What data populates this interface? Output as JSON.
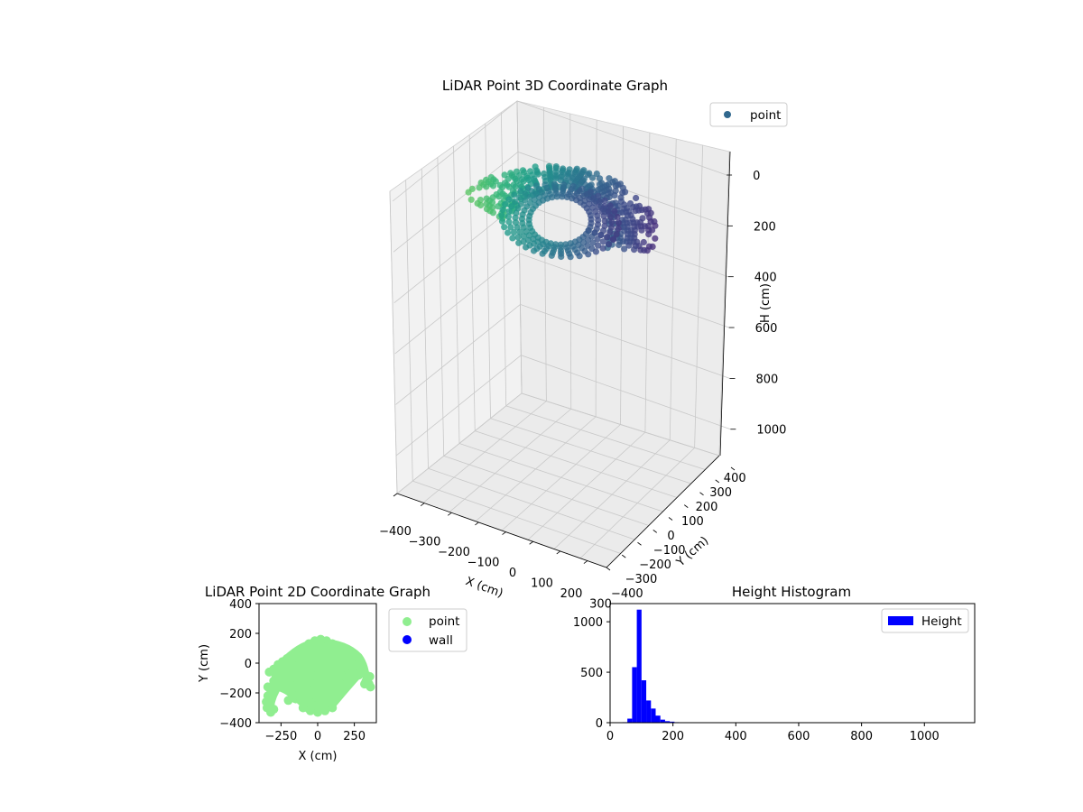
{
  "figure": {
    "background": "#ffffff"
  },
  "chart_data": [
    {
      "type": "scatter",
      "projection": "3d",
      "title": "LiDAR Point 3D Coordinate Graph",
      "xlabel": "X (cm)",
      "ylabel": "Y (cm)",
      "zlabel": "H (cm)",
      "xlim": [
        -400,
        370
      ],
      "ylim": [
        -400,
        400
      ],
      "zlim": [
        0,
        1150
      ],
      "z_inverted": true,
      "x_ticks": [
        "−400",
        "−300",
        "−200",
        "−100",
        "0",
        "100",
        "200",
        "300"
      ],
      "y_ticks": [
        "−400",
        "−300",
        "−200",
        "−100",
        "0",
        "100",
        "200",
        "300",
        "400"
      ],
      "z_ticks": [
        "0",
        "200",
        "400",
        "600",
        "800",
        "1000"
      ],
      "colormap": "viridis",
      "grid": true,
      "legend": {
        "placement": "top-right",
        "entries": [
          {
            "label": "point",
            "color": "#31688e"
          }
        ]
      },
      "series": [
        {
          "name": "point",
          "description_of_shape": "dome-shaped point cloud",
          "inner_arc": {
            "radius": 190,
            "x_offset": 20,
            "y_offset": -60,
            "h_range": [
              40,
              130
            ]
          },
          "outer_arc": {
            "radius": 330,
            "x_offset": 0,
            "y_offset": -60,
            "h_range": [
              60,
              160
            ]
          }
        }
      ]
    },
    {
      "type": "scatter",
      "title": "LiDAR Point 2D Coordinate Graph",
      "xlabel": "X (cm)",
      "ylabel": "Y (cm)",
      "xlim": [
        -400,
        400
      ],
      "ylim": [
        -400,
        400
      ],
      "x_ticks": [
        -250,
        0,
        250
      ],
      "y_ticks": [
        -400,
        -200,
        0,
        200,
        400
      ],
      "grid": false,
      "legend": {
        "placement": "outside-right",
        "entries": [
          {
            "label": "point",
            "color": "#90ee90"
          },
          {
            "label": "wall",
            "color": "#0000ff"
          }
        ]
      },
      "series": [
        {
          "name": "point",
          "color": "#90ee90",
          "x": [
            -340,
            -300,
            -260,
            -220,
            -180,
            -140,
            -100,
            -60,
            -20,
            20,
            60,
            100,
            140,
            180,
            220,
            260,
            300,
            340,
            -320,
            -280,
            -240,
            -200,
            -160,
            -120,
            -80,
            -40,
            0,
            40,
            80,
            120,
            160,
            200,
            240,
            280,
            320,
            -330,
            -300,
            -270,
            -240,
            -210,
            -180,
            -150,
            -120,
            -90,
            -60,
            -30,
            0,
            30,
            60,
            90,
            120,
            150,
            180,
            210,
            240,
            270,
            300,
            330,
            -200,
            -160,
            -120,
            -80,
            -40,
            0,
            40,
            80,
            120,
            160,
            200,
            -180,
            -140,
            -100,
            -60,
            -20,
            20,
            60,
            100,
            140,
            180,
            -340,
            -350,
            -345,
            -320,
            -300,
            -150,
            -120,
            -60,
            -30,
            0,
            30,
            60,
            90,
            -180,
            -200,
            330,
            350,
            360,
            355,
            -100,
            -50,
            0,
            50,
            100,
            -80,
            -40,
            0,
            40,
            80
          ],
          "y": [
            -160,
            -120,
            -60,
            -20,
            20,
            60,
            100,
            130,
            150,
            160,
            150,
            130,
            100,
            60,
            20,
            -20,
            -60,
            -100,
            -180,
            -100,
            -40,
            0,
            40,
            80,
            110,
            130,
            140,
            140,
            120,
            90,
            50,
            10,
            -30,
            -80,
            -140,
            -60,
            -40,
            -10,
            10,
            30,
            50,
            70,
            90,
            100,
            110,
            115,
            118,
            115,
            110,
            100,
            90,
            70,
            50,
            30,
            10,
            -10,
            -40,
            -80,
            -100,
            -80,
            -60,
            -60,
            -80,
            -100,
            -80,
            -60,
            -60,
            -80,
            -100,
            -150,
            -160,
            -170,
            -180,
            -200,
            -200,
            -180,
            -170,
            -160,
            -150,
            -220,
            -260,
            -300,
            -330,
            -310,
            -240,
            -230,
            -250,
            -270,
            -280,
            -260,
            -240,
            -220,
            -200,
            -250,
            -120,
            -140,
            -160,
            -90,
            -300,
            -320,
            -330,
            -320,
            -300,
            -260,
            -280,
            -290,
            -280,
            -260
          ]
        },
        {
          "name": "wall",
          "color": "#0000ff",
          "x": [],
          "y": []
        }
      ]
    },
    {
      "type": "bar",
      "subtype": "histogram",
      "title": "Height Histogram",
      "xlim": [
        0,
        1160
      ],
      "ylim": [
        0,
        1180
      ],
      "x_ticks": [
        0,
        200,
        400,
        600,
        800,
        1000
      ],
      "y_ticks": [
        0,
        500,
        1000
      ],
      "grid": false,
      "legend": {
        "placement": "top-right",
        "entries": [
          {
            "label": "Height",
            "color": "#0000ff"
          }
        ]
      },
      "series": [
        {
          "name": "Height",
          "color": "#0000ff",
          "bin_edges": [
            40,
            55,
            70,
            85,
            100,
            115,
            130,
            145,
            160,
            175,
            190,
            205,
            220,
            235
          ],
          "values": [
            5,
            40,
            550,
            1120,
            420,
            220,
            140,
            70,
            30,
            15,
            10,
            5,
            2
          ]
        }
      ]
    }
  ]
}
